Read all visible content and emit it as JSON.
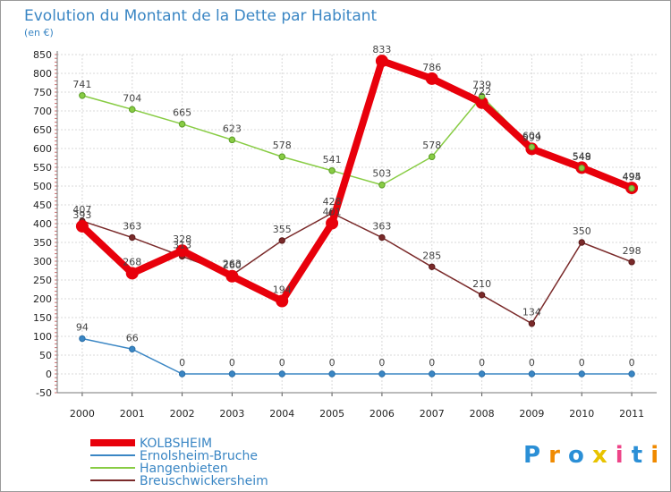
{
  "chart_data": {
    "type": "line",
    "title": "Evolution du Montant de la Dette par Habitant",
    "subtitle": "(en €)",
    "xlabel": "",
    "ylabel": "",
    "categories": [
      "2000",
      "2001",
      "2002",
      "2003",
      "2004",
      "2005",
      "2006",
      "2007",
      "2008",
      "2009",
      "2010",
      "2011"
    ],
    "ylim": [
      -50,
      850
    ],
    "yticks": [
      -50,
      0,
      50,
      100,
      150,
      200,
      250,
      300,
      350,
      400,
      450,
      500,
      550,
      600,
      650,
      700,
      750,
      800,
      850
    ],
    "grid": true,
    "legend_position": "bottom-left",
    "series": [
      {
        "name": "KOLBSHEIM",
        "color": "#e8000b",
        "values": [
          393,
          268,
          328,
          260,
          194,
          401,
          833,
          786,
          722,
          599,
          549,
          495
        ]
      },
      {
        "name": "Ernolsheim-Bruche",
        "color": "#3a86c4",
        "values": [
          94,
          66,
          0,
          0,
          0,
          0,
          0,
          0,
          0,
          0,
          0,
          0
        ]
      },
      {
        "name": "Hangenbieten",
        "color": "#88cc44",
        "values": [
          741,
          704,
          665,
          623,
          578,
          541,
          503,
          578,
          739,
          604,
          548,
          494
        ]
      },
      {
        "name": "Breuschwickersheim",
        "color": "#7a2a2a",
        "values": [
          407,
          363,
          313,
          263,
          355,
          428,
          363,
          285,
          210,
          134,
          350,
          298
        ]
      }
    ]
  },
  "logo": {
    "letters": [
      "P",
      "r",
      "o",
      "x",
      "i",
      "t",
      "i"
    ]
  }
}
